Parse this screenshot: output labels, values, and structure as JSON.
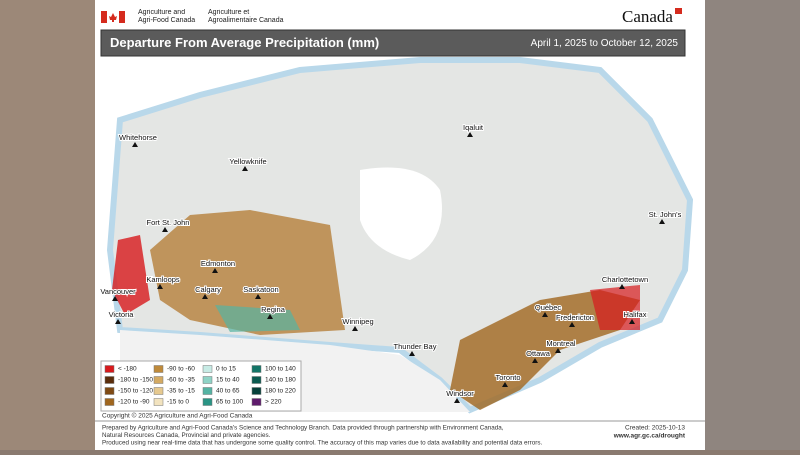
{
  "header": {
    "dept_en": "Agriculture and Agri-Food Canada",
    "dept_fr": "Agriculture et Agroalimentaire Canada",
    "wordmark": "Canada"
  },
  "title": "Departure From Average Precipitation (mm)",
  "date_range": "April 1, 2025 to October 12, 2025",
  "cities": [
    "Whitehorse",
    "Yellowknife",
    "Iqaluit",
    "Fort St. John",
    "Edmonton",
    "Kamloops",
    "Calgary",
    "Saskatoon",
    "Vancouver",
    "Regina",
    "Victoria",
    "Winnipeg",
    "St. John's",
    "Charlottetown",
    "Québec",
    "Fredericton",
    "Halifax",
    "Thunder Bay",
    "Montreal",
    "Ottawa",
    "Toronto",
    "Windsor"
  ],
  "legend": [
    {
      "label": "< -180",
      "color": "#d7191c"
    },
    {
      "label": "-180 to -150",
      "color": "#5a2d0c"
    },
    {
      "label": "-150 to -120",
      "color": "#7f4a14"
    },
    {
      "label": "-120 to -90",
      "color": "#a0661e"
    },
    {
      "label": "-90 to -60",
      "color": "#bf8a3a"
    },
    {
      "label": "-60 to -35",
      "color": "#d4aa62"
    },
    {
      "label": "-35 to -15",
      "color": "#e6c98f"
    },
    {
      "label": "-15 to 0",
      "color": "#f2e3bf"
    },
    {
      "label": "0 to 15",
      "color": "#c7ebe5"
    },
    {
      "label": "15 to 40",
      "color": "#8fd3c6"
    },
    {
      "label": "40 to 65",
      "color": "#55b3a3"
    },
    {
      "label": "65 to 100",
      "color": "#2a9484"
    },
    {
      "label": "100 to 140",
      "color": "#137567"
    },
    {
      "label": "140 to 180",
      "color": "#0b5a50"
    },
    {
      "label": "180 to 220",
      "color": "#06403a"
    },
    {
      "label": "> 220",
      "color": "#5e1a6b"
    }
  ],
  "copyright": "Copyright © 2025 Agriculture and Agri-Food Canada",
  "footer": {
    "lines": [
      "Prepared by Agriculture and Agri-Food Canada's Science and Technology Branch. Data provided through partnership with Environment Canada,",
      "Natural Resources Canada, Provincial and private agencies.",
      "Produced using near real-time data that has undergone some quality control. The accuracy of this map varies due to data availability and potential data errors."
    ],
    "created": "Created: 2025-10-13",
    "url": "www.agr.gc.ca/drought"
  }
}
